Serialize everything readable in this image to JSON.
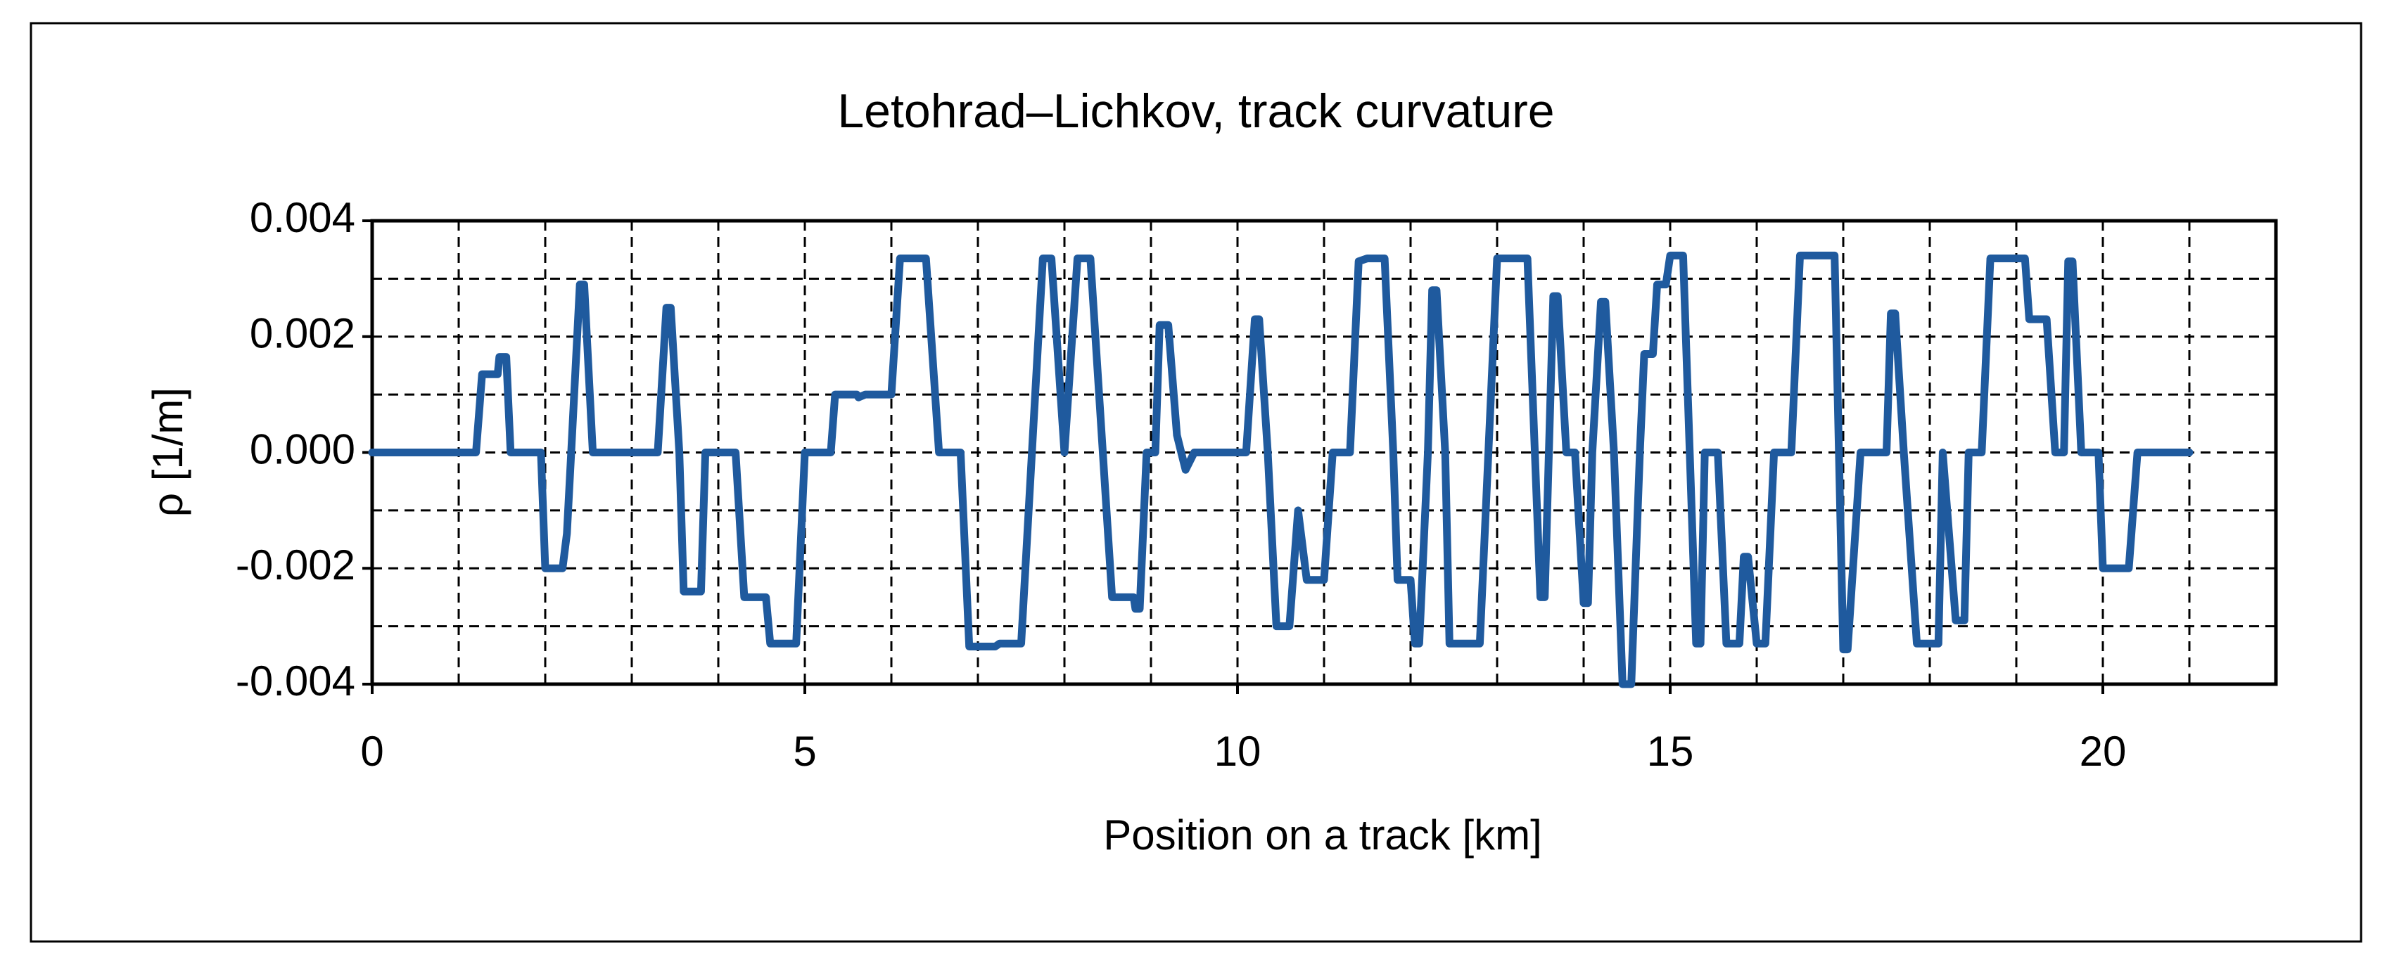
{
  "chart_data": {
    "type": "line",
    "title": "Letohrad–Lichkov, track curvature",
    "xlabel": "Position on a track [km]",
    "ylabel": "ρ [1/m]",
    "color": "#1f5a9e",
    "xlim": [
      0,
      22
    ],
    "ylim": [
      -0.004,
      0.004
    ],
    "xticks": [
      0,
      5,
      10,
      15,
      20
    ],
    "yticks": [
      -0.004,
      -0.002,
      {
        "value": 0,
        "label": "0.000"
      },
      0.002,
      0.004
    ],
    "xgrid": [
      1,
      2,
      3,
      4,
      5,
      6,
      7,
      8,
      9,
      10,
      11,
      12,
      13,
      14,
      15,
      16,
      17,
      18,
      19,
      20,
      21
    ],
    "ygrid": [
      -0.003,
      -0.002,
      -0.001,
      0,
      0.001,
      0.002,
      0.003
    ],
    "grid_style": "dashed",
    "x": [
      0,
      1.2,
      1.27,
      1.45,
      1.47,
      1.55,
      1.6,
      1.95,
      2.0,
      2.2,
      2.25,
      2.3,
      2.4,
      2.45,
      2.55,
      3.3,
      3.4,
      3.45,
      3.55,
      3.6,
      3.8,
      3.85,
      4.2,
      4.3,
      4.55,
      4.6,
      4.9,
      5.0,
      5.3,
      5.35,
      5.6,
      5.62,
      5.7,
      6.0,
      6.1,
      6.4,
      6.55,
      6.8,
      6.9,
      7.2,
      7.25,
      7.5,
      7.75,
      7.85,
      8.0,
      8.15,
      8.3,
      8.55,
      8.8,
      8.82,
      8.87,
      8.95,
      9.05,
      9.1,
      9.2,
      9.3,
      9.35,
      9.4,
      9.5,
      10.1,
      10.2,
      10.25,
      10.35,
      10.45,
      10.6,
      10.7,
      10.8,
      11.0,
      11.1,
      11.3,
      11.4,
      11.5,
      11.7,
      11.8,
      11.85,
      12.0,
      12.05,
      12.1,
      12.2,
      12.25,
      12.3,
      12.4,
      12.45,
      12.8,
      13.0,
      13.35,
      13.5,
      13.55,
      13.65,
      13.7,
      13.8,
      13.9,
      14.0,
      14.05,
      14.1,
      14.2,
      14.25,
      14.35,
      14.45,
      14.55,
      14.65,
      14.7,
      14.8,
      14.85,
      14.95,
      15.0,
      15.15,
      15.3,
      15.35,
      15.4,
      15.55,
      15.65,
      15.8,
      15.85,
      15.9,
      16.0,
      16.1,
      16.2,
      16.4,
      16.5,
      16.9,
      17.0,
      17.05,
      17.2,
      17.5,
      17.55,
      17.6,
      17.7,
      17.85,
      18.1,
      18.15,
      18.3,
      18.4,
      18.45,
      18.6,
      18.7,
      19.1,
      19.15,
      19.35,
      19.45,
      19.55,
      19.6,
      19.65,
      19.75,
      19.95,
      20.0,
      20.3,
      20.4,
      21.0
    ],
    "values": [
      0,
      0,
      0.00135,
      0.00135,
      0.00165,
      0.00165,
      0,
      0,
      -0.002,
      -0.002,
      -0.0014,
      0,
      0.0029,
      0.0029,
      0,
      0,
      0.0025,
      0.0025,
      0,
      -0.0024,
      -0.0024,
      0,
      0,
      -0.0025,
      -0.0025,
      -0.0033,
      -0.0033,
      0,
      0,
      0.001,
      0.001,
      0.00095,
      0.001,
      0.001,
      0.00335,
      0.00335,
      0,
      0,
      -0.00335,
      -0.00335,
      -0.0033,
      -0.0033,
      0.00335,
      0.00335,
      0,
      0.00335,
      0.00335,
      -0.0025,
      -0.0025,
      -0.0027,
      -0.0027,
      0,
      0,
      0.0022,
      0.0022,
      0.0003,
      0,
      -0.0003,
      0,
      0,
      0.0023,
      0.0023,
      0,
      -0.003,
      -0.003,
      -0.001,
      -0.0022,
      -0.0022,
      0,
      0,
      0.0033,
      0.00335,
      0.00335,
      0,
      -0.0022,
      -0.0022,
      -0.0033,
      -0.0033,
      0,
      0.0028,
      0.0028,
      0,
      -0.0033,
      -0.0033,
      0.00335,
      0.00335,
      -0.0025,
      -0.0025,
      0.0027,
      0.0027,
      0,
      0,
      -0.0026,
      -0.0026,
      0,
      0.0026,
      0.0026,
      0,
      -0.004,
      -0.004,
      0,
      0.0017,
      0.0017,
      0.0029,
      0.0029,
      0.0034,
      0.0034,
      -0.0033,
      -0.0033,
      0,
      0,
      -0.0033,
      -0.0033,
      -0.0018,
      -0.0018,
      -0.0033,
      -0.0033,
      0,
      0,
      0.0034,
      0.0034,
      -0.0034,
      -0.0034,
      0,
      0,
      0.0024,
      0.0024,
      0,
      -0.0033,
      -0.0033,
      0,
      -0.0029,
      -0.0029,
      0,
      0,
      0.00335,
      0.00335,
      0.0023,
      0.0023,
      0,
      0,
      0.0033,
      0.0033,
      0,
      0,
      -0.002,
      -0.002,
      0,
      0
    ]
  }
}
